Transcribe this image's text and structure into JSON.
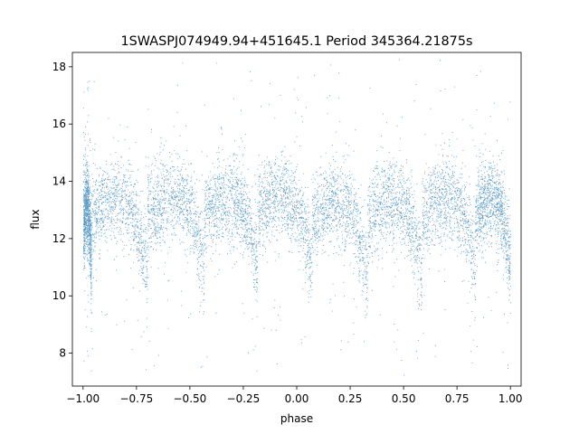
{
  "chart_data": {
    "type": "scatter",
    "title": "1SWASPJ074949.94+451645.1 Period 345364.21875s",
    "xlabel": "phase",
    "ylabel": "flux",
    "xlim": [
      -1.05,
      1.05
    ],
    "ylim": [
      6.85,
      18.5
    ],
    "xticks": [
      -1.0,
      -0.75,
      -0.5,
      -0.25,
      0.0,
      0.25,
      0.5,
      0.75,
      1.0
    ],
    "xtick_labels": [
      "−1.00",
      "−0.75",
      "−0.50",
      "−0.25",
      "0.00",
      "0.25",
      "0.50",
      "0.75",
      "1.00"
    ],
    "yticks": [
      8,
      10,
      12,
      14,
      16,
      18
    ],
    "ytick_labels": [
      "8",
      "10",
      "12",
      "14",
      "16",
      "18"
    ],
    "grid": false,
    "point_color": "#1f77b4",
    "eclipse_phases": [
      -0.962,
      -0.7,
      -0.435,
      -0.185,
      0.07,
      0.33,
      0.585,
      0.835
    ],
    "cluster_segments": [
      {
        "x": [
          -1.0,
          -0.962
        ],
        "center": 12.5
      },
      {
        "x": [
          -0.962,
          -0.7
        ],
        "center": 12.8
      },
      {
        "x": [
          -0.7,
          -0.435
        ],
        "center": 12.9
      },
      {
        "x": [
          -0.435,
          -0.185
        ],
        "center": 12.8
      },
      {
        "x": [
          -0.185,
          0.07
        ],
        "center": 12.9
      },
      {
        "x": [
          0.07,
          0.33
        ],
        "center": 12.6
      },
      {
        "x": [
          0.33,
          0.585
        ],
        "center": 12.7
      },
      {
        "x": [
          0.585,
          0.835
        ],
        "center": 12.8
      },
      {
        "x": [
          0.835,
          1.0
        ],
        "center": 12.8
      }
    ]
  }
}
